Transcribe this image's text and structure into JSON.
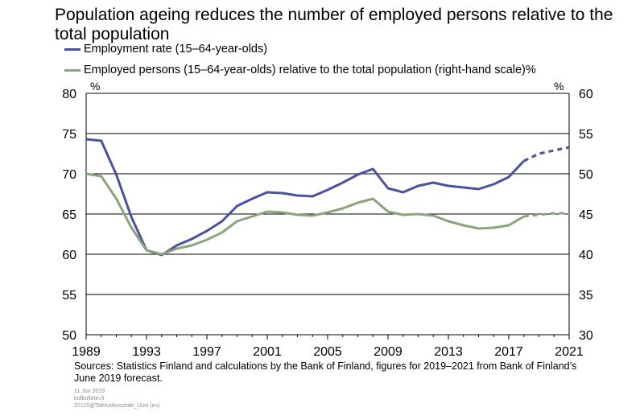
{
  "title": "Population ageing reduces the number of employed persons relative to the total population",
  "legend": [
    {
      "label": "Employment rate (15–64-year-olds)",
      "color": "#4a519e"
    },
    {
      "label": "Employed persons (15–64-year-olds) relative to the total population (right-hand scale)",
      "color": "#8aa47c"
    }
  ],
  "left_unit": "%",
  "right_unit": "%",
  "sources": "Sources: Statistics Finland and calculations by the Bank of Finland, figures for 2019–2021 from Bank of Finland’s June 2019 forecast.",
  "meta": [
    "11 Jun 2019",
    "bofbulletin.fi",
    "37115@TalHuoltosuhde_Uusi (en)"
  ],
  "chart_data": {
    "type": "line",
    "title": "Population ageing reduces the number of employed persons relative to the total population",
    "xlim": [
      1989,
      2021
    ],
    "x_ticks": [
      1989,
      1993,
      1997,
      2001,
      2005,
      2009,
      2013,
      2017,
      2021
    ],
    "y_left": {
      "ticks": [
        50,
        55,
        60,
        65,
        70,
        75,
        80
      ],
      "lim": [
        50,
        80
      ]
    },
    "y_right": {
      "ticks": [
        30,
        35,
        40,
        45,
        50,
        55,
        60
      ],
      "lim": [
        30,
        60
      ]
    },
    "grid": "horizontal",
    "legend_position": "top-left",
    "forecast_from": 2018,
    "series": [
      {
        "name": "Employment rate (15–64-year-olds)",
        "axis": "left",
        "color": "#4a519e",
        "x": [
          1989,
          1990,
          1991,
          1992,
          1993,
          1994,
          1995,
          1996,
          1997,
          1998,
          1999,
          2000,
          2001,
          2002,
          2003,
          2004,
          2005,
          2006,
          2007,
          2008,
          2009,
          2010,
          2011,
          2012,
          2013,
          2014,
          2015,
          2016,
          2017,
          2018,
          2019,
          2020,
          2021
        ],
        "values": [
          74.3,
          74.1,
          69.9,
          64.6,
          60.5,
          59.9,
          61.1,
          61.9,
          62.9,
          64.1,
          66.0,
          66.9,
          67.7,
          67.6,
          67.3,
          67.2,
          68.0,
          68.9,
          69.9,
          70.6,
          68.2,
          67.7,
          68.5,
          68.9,
          68.5,
          68.3,
          68.1,
          68.7,
          69.6,
          71.6,
          72.5,
          72.9,
          73.3
        ]
      },
      {
        "name": "Employed persons (15–64-year-olds) relative to the total population (right-hand scale)",
        "axis": "right",
        "color": "#8aa47c",
        "x": [
          1989,
          1990,
          1991,
          1992,
          1993,
          1994,
          1995,
          1996,
          1997,
          1998,
          1999,
          2000,
          2001,
          2002,
          2003,
          2004,
          2005,
          2006,
          2007,
          2008,
          2009,
          2010,
          2011,
          2012,
          2013,
          2014,
          2015,
          2016,
          2017,
          2018,
          2019,
          2020,
          2021
        ],
        "values": [
          50.0,
          49.7,
          46.9,
          43.3,
          40.5,
          40.0,
          40.7,
          41.1,
          41.8,
          42.7,
          44.1,
          44.7,
          45.3,
          45.2,
          44.9,
          44.8,
          45.2,
          45.7,
          46.4,
          46.9,
          45.3,
          44.9,
          45.0,
          44.8,
          44.1,
          43.6,
          43.2,
          43.3,
          43.6,
          44.7,
          44.9,
          45.1,
          45.1
        ]
      }
    ]
  }
}
